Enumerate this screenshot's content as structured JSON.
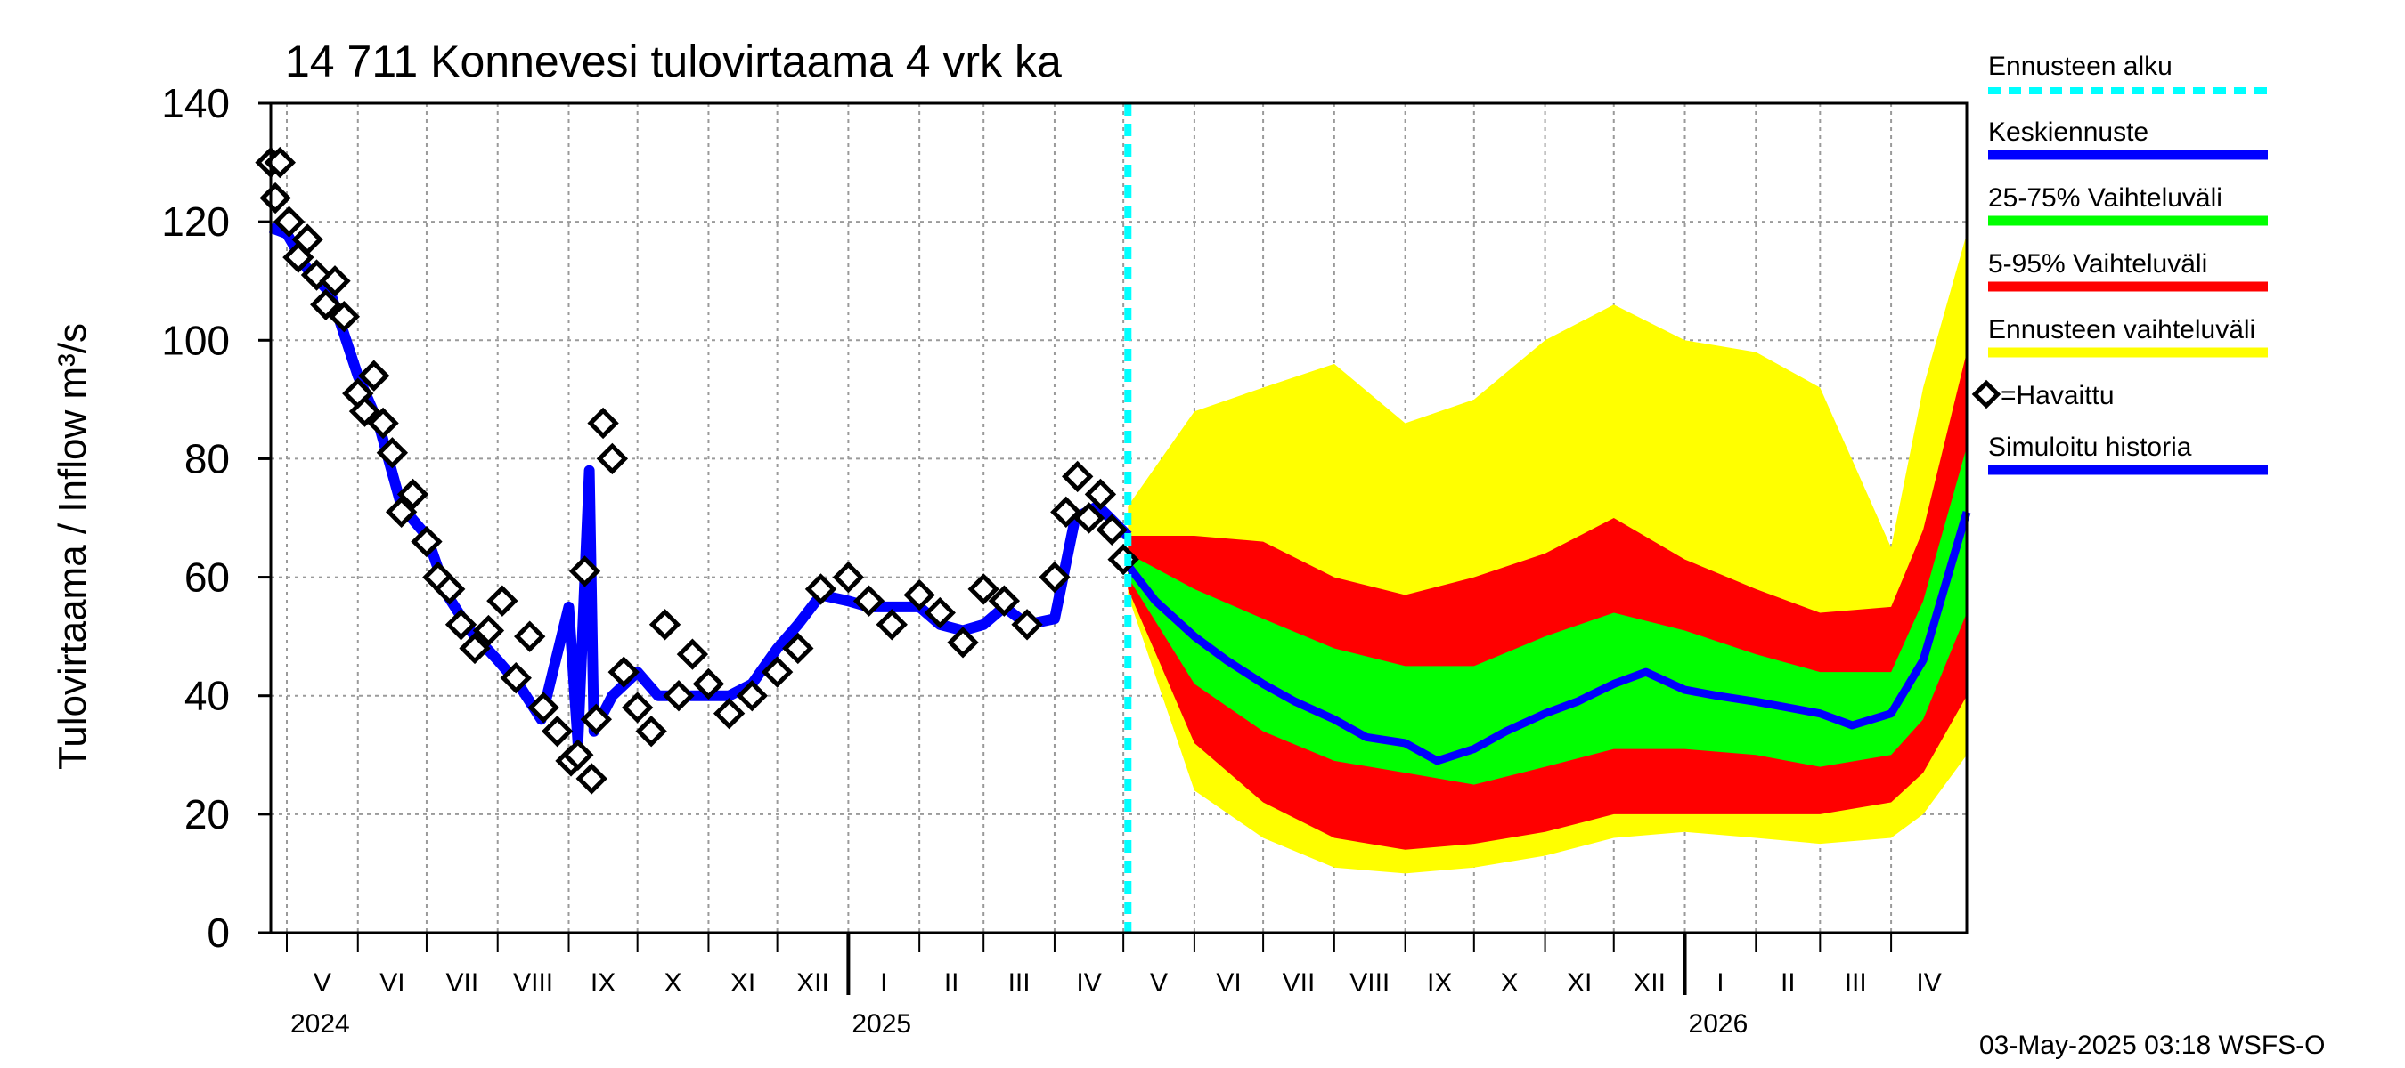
{
  "chart_data": {
    "type": "area",
    "title": "14 711 Konnevesi tulovirtaama 4 vrk ka",
    "ylabel": "Tulovirtaama / Inflow    m³/s",
    "ylim": [
      0,
      140
    ],
    "yticks": [
      0,
      20,
      40,
      60,
      80,
      100,
      120,
      140
    ],
    "x_range": [
      "2024-04-24",
      "2026-05-04"
    ],
    "forecast_start": "2025-05-03",
    "grid": true,
    "months": [
      {
        "label": "V",
        "start": "2024-05-01"
      },
      {
        "label": "VI",
        "start": "2024-06-01"
      },
      {
        "label": "VII",
        "start": "2024-07-01"
      },
      {
        "label": "VIII",
        "start": "2024-08-01"
      },
      {
        "label": "IX",
        "start": "2024-09-01"
      },
      {
        "label": "X",
        "start": "2024-10-01"
      },
      {
        "label": "XI",
        "start": "2024-11-01"
      },
      {
        "label": "XII",
        "start": "2024-12-01"
      },
      {
        "label": "I",
        "start": "2025-01-01"
      },
      {
        "label": "II",
        "start": "2025-02-01"
      },
      {
        "label": "III",
        "start": "2025-03-01"
      },
      {
        "label": "IV",
        "start": "2025-04-01"
      },
      {
        "label": "V",
        "start": "2025-05-01"
      },
      {
        "label": "VI",
        "start": "2025-06-01"
      },
      {
        "label": "VII",
        "start": "2025-07-01"
      },
      {
        "label": "VIII",
        "start": "2025-08-01"
      },
      {
        "label": "IX",
        "start": "2025-09-01"
      },
      {
        "label": "X",
        "start": "2025-10-01"
      },
      {
        "label": "XI",
        "start": "2025-11-01"
      },
      {
        "label": "XII",
        "start": "2025-12-01"
      },
      {
        "label": "I",
        "start": "2026-01-01"
      },
      {
        "label": "II",
        "start": "2026-02-01"
      },
      {
        "label": "III",
        "start": "2026-03-01"
      },
      {
        "label": "IV",
        "start": "2026-04-01"
      }
    ],
    "years": [
      {
        "label": "2024",
        "date": "2024-05-01"
      },
      {
        "label": "2025",
        "date": "2025-01-01"
      },
      {
        "label": "2026",
        "date": "2026-01-01"
      }
    ],
    "series": [
      {
        "name": "Simuloitu historia",
        "color": "#0000ff",
        "x": [
          "2024-04-24",
          "2024-05-01",
          "2024-05-10",
          "2024-05-20",
          "2024-06-01",
          "2024-06-10",
          "2024-06-20",
          "2024-07-01",
          "2024-07-10",
          "2024-07-20",
          "2024-08-01",
          "2024-08-10",
          "2024-08-20",
          "2024-09-01",
          "2024-09-05",
          "2024-09-10",
          "2024-09-12",
          "2024-09-20",
          "2024-10-01",
          "2024-10-10",
          "2024-10-20",
          "2024-11-01",
          "2024-11-10",
          "2024-11-20",
          "2024-12-01",
          "2024-12-10",
          "2024-12-20",
          "2025-01-01",
          "2025-01-10",
          "2025-01-20",
          "2025-02-01",
          "2025-02-10",
          "2025-02-20",
          "2025-03-01",
          "2025-03-10",
          "2025-03-20",
          "2025-04-01",
          "2025-04-10",
          "2025-04-20",
          "2025-05-03"
        ],
        "y": [
          119,
          118,
          112,
          108,
          94,
          86,
          72,
          67,
          57,
          51,
          46,
          42,
          36,
          55,
          32,
          78,
          34,
          40,
          44,
          40,
          40,
          40,
          40,
          42,
          48,
          52,
          57,
          56,
          55,
          55,
          55,
          52,
          51,
          52,
          55,
          52,
          53,
          70,
          72,
          67
        ]
      },
      {
        "name": "=Havaittu",
        "color": "#000000",
        "x": [
          "2024-04-24",
          "2024-04-26",
          "2024-04-28",
          "2024-05-02",
          "2024-05-06",
          "2024-05-10",
          "2024-05-14",
          "2024-05-18",
          "2024-05-22",
          "2024-05-26",
          "2024-06-01",
          "2024-06-04",
          "2024-06-08",
          "2024-06-12",
          "2024-06-16",
          "2024-06-20",
          "2024-06-25",
          "2024-07-01",
          "2024-07-06",
          "2024-07-11",
          "2024-07-16",
          "2024-07-22",
          "2024-07-28",
          "2024-08-03",
          "2024-08-09",
          "2024-08-15",
          "2024-08-21",
          "2024-08-27",
          "2024-09-02",
          "2024-09-05",
          "2024-09-08",
          "2024-09-11",
          "2024-09-13",
          "2024-09-16",
          "2024-09-20",
          "2024-09-25",
          "2024-10-01",
          "2024-10-07",
          "2024-10-13",
          "2024-10-19",
          "2024-10-25",
          "2024-11-01",
          "2024-11-10",
          "2024-11-20",
          "2024-12-01",
          "2024-12-10",
          "2024-12-20",
          "2025-01-01",
          "2025-01-10",
          "2025-01-20",
          "2025-02-01",
          "2025-02-10",
          "2025-02-20",
          "2025-03-01",
          "2025-03-10",
          "2025-03-20",
          "2025-04-01",
          "2025-04-06",
          "2025-04-11",
          "2025-04-16",
          "2025-04-21",
          "2025-04-26",
          "2025-05-01"
        ],
        "y": [
          130,
          124,
          130,
          120,
          114,
          117,
          111,
          106,
          110,
          104,
          91,
          88,
          94,
          86,
          81,
          71,
          74,
          66,
          60,
          58,
          52,
          48,
          51,
          56,
          43,
          50,
          38,
          34,
          29,
          30,
          61,
          26,
          36,
          86,
          80,
          44,
          38,
          34,
          52,
          40,
          47,
          42,
          37,
          40,
          44,
          48,
          58,
          60,
          56,
          52,
          57,
          54,
          49,
          58,
          56,
          52,
          60,
          71,
          77,
          70,
          74,
          68,
          63
        ]
      },
      {
        "name": "Keskiennuste",
        "color": "#0000ff",
        "x": [
          "2025-05-03",
          "2025-05-15",
          "2025-06-01",
          "2025-06-15",
          "2025-07-01",
          "2025-07-15",
          "2025-08-01",
          "2025-08-15",
          "2025-09-01",
          "2025-09-15",
          "2025-10-01",
          "2025-10-15",
          "2025-11-01",
          "2025-11-15",
          "2025-12-01",
          "2025-12-15",
          "2026-01-01",
          "2026-01-15",
          "2026-02-01",
          "2026-02-15",
          "2026-03-01",
          "2026-03-15",
          "2026-04-01",
          "2026-04-15",
          "2026-05-04"
        ],
        "y": [
          62,
          56,
          50,
          46,
          42,
          39,
          36,
          33,
          32,
          29,
          31,
          34,
          37,
          39,
          42,
          44,
          41,
          40,
          39,
          38,
          37,
          35,
          37,
          46,
          71
        ]
      },
      {
        "name": "25-75% Vaihteluväli",
        "color": "#00ff00",
        "x": [
          "2025-05-03",
          "2025-06-01",
          "2025-07-01",
          "2025-08-01",
          "2025-09-01",
          "2025-10-01",
          "2025-11-01",
          "2025-12-01",
          "2026-01-01",
          "2026-02-01",
          "2026-03-01",
          "2026-04-01",
          "2026-04-15",
          "2026-05-04"
        ],
        "low": [
          60,
          42,
          34,
          29,
          27,
          25,
          28,
          31,
          31,
          30,
          28,
          30,
          36,
          54
        ],
        "high": [
          64,
          58,
          53,
          48,
          45,
          45,
          50,
          54,
          51,
          47,
          44,
          44,
          56,
          82
        ]
      },
      {
        "name": "5-95% Vaihteluväli",
        "color": "#ff0000",
        "x": [
          "2025-05-03",
          "2025-06-01",
          "2025-07-01",
          "2025-08-01",
          "2025-09-01",
          "2025-10-01",
          "2025-11-01",
          "2025-12-01",
          "2026-01-01",
          "2026-02-01",
          "2026-03-01",
          "2026-04-01",
          "2026-04-15",
          "2026-05-04"
        ],
        "low": [
          58,
          32,
          22,
          16,
          14,
          15,
          17,
          20,
          20,
          20,
          20,
          22,
          27,
          40
        ],
        "high": [
          67,
          67,
          66,
          60,
          57,
          60,
          64,
          70,
          63,
          58,
          54,
          55,
          68,
          98
        ]
      },
      {
        "name": "Ennusteen vaihteluväli",
        "color": "#ffff00",
        "x": [
          "2025-05-03",
          "2025-06-01",
          "2025-07-01",
          "2025-08-01",
          "2025-09-01",
          "2025-10-01",
          "2025-11-01",
          "2025-12-01",
          "2026-01-01",
          "2026-02-01",
          "2026-03-01",
          "2026-04-01",
          "2026-04-15",
          "2026-05-04"
        ],
        "low": [
          57,
          24,
          16,
          11,
          10,
          11,
          13,
          16,
          17,
          16,
          15,
          16,
          20,
          30
        ],
        "high": [
          72,
          88,
          92,
          96,
          86,
          90,
          100,
          106,
          100,
          98,
          92,
          65,
          92,
          118
        ]
      }
    ]
  },
  "legend": {
    "forecast_start": "Ennusteen alku",
    "mean": "Keskiennuste",
    "p25_75": "25-75% Vaihteluväli",
    "p5_95": "5-95% Vaihteluväli",
    "range": "Ennusteen vaihteluväli",
    "observed": "=Havaittu",
    "simulated": "Simuloitu historia"
  },
  "colors": {
    "forecast_start": "#00ffff",
    "mean": "#0000ff",
    "p25_75": "#00ff00",
    "p5_95": "#ff0000",
    "range": "#ffff00",
    "observed": "#000000",
    "simulated": "#0000ff"
  },
  "footer": "03-May-2025 03:18 WSFS-O"
}
